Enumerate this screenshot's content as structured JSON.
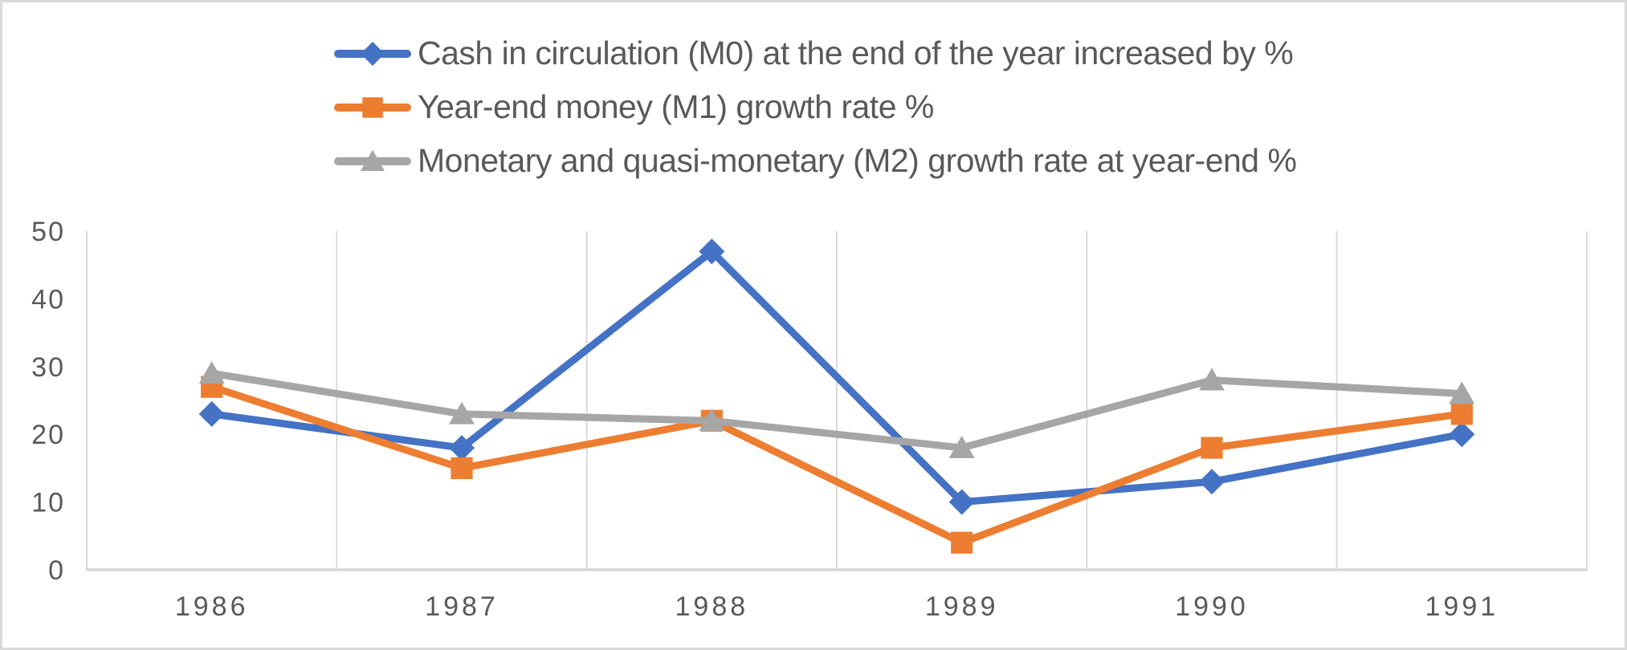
{
  "chart_data": {
    "type": "line",
    "categories": [
      "1986",
      "1987",
      "1988",
      "1989",
      "1990",
      "1991"
    ],
    "series": [
      {
        "name": "Cash in circulation (M0) at the end of the year increased by %",
        "marker": "diamond",
        "color": "#4472C4",
        "values": [
          23,
          18,
          47,
          10,
          13,
          20
        ]
      },
      {
        "name": "Year-end money (M1) growth rate %",
        "marker": "square",
        "color": "#ED7D31",
        "values": [
          27,
          15,
          22,
          4,
          18,
          23
        ]
      },
      {
        "name": "Monetary and quasi-monetary (M2) growth rate at year-end %",
        "marker": "triangle",
        "color": "#A6A6A6",
        "values": [
          29,
          23,
          22,
          18,
          28,
          26
        ]
      }
    ],
    "title": "",
    "xlabel": "",
    "ylabel": "",
    "ylim": [
      0,
      50
    ],
    "yticks": [
      0,
      10,
      20,
      30,
      40,
      50
    ],
    "grid": "vertical-only",
    "legend_position": "top-left"
  },
  "colors": {
    "axis_text": "#595959",
    "gridline": "#D9D9D9",
    "frame_border": "#D9D9D9",
    "background": "#FFFFFF"
  }
}
